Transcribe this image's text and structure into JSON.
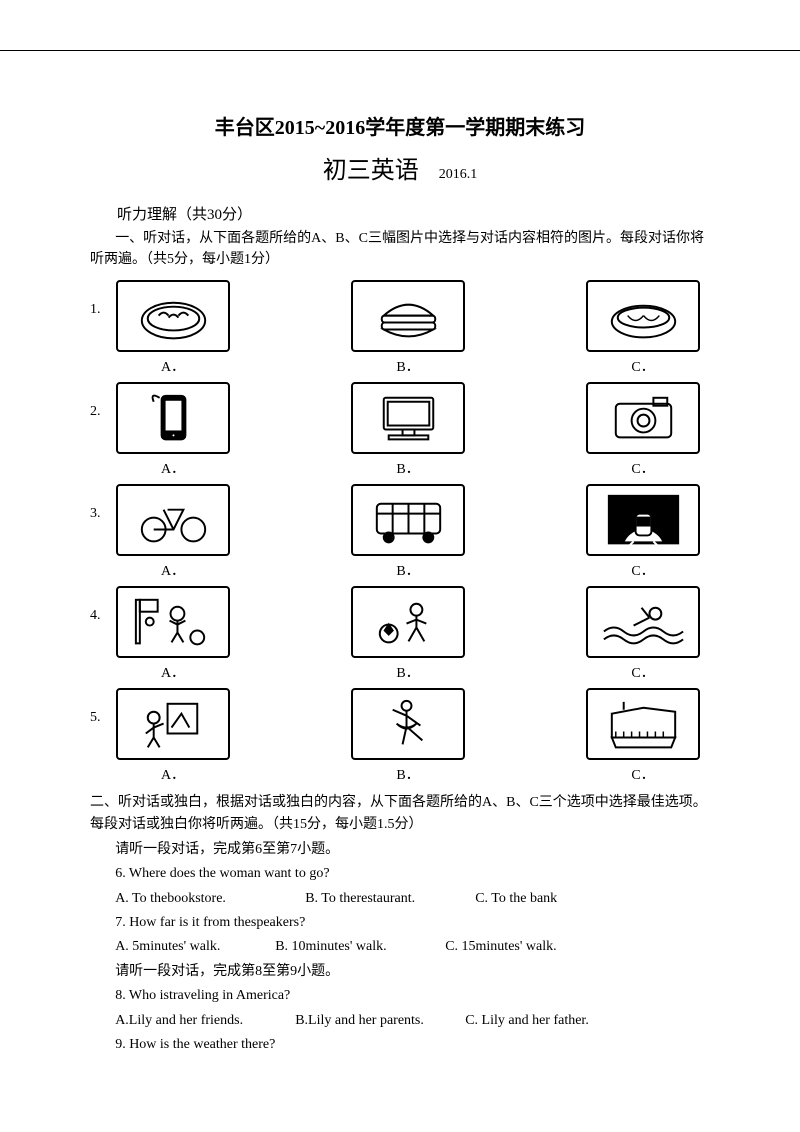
{
  "header": {
    "main": "丰台区2015~2016学年度第一学期期末练习",
    "sub": "初三英语",
    "date": "2016.1"
  },
  "listening": {
    "head": "听力理解（共30分）",
    "part1_intro": "一、听对话，从下面各题所给的A、B、C三幅图片中选择与对话内容相符的图片。每段对话你将听两遍。（共5分，每小题1分）",
    "labels": {
      "A": "A．",
      "B": "B．",
      "C": "C．"
    },
    "rows": [
      {
        "num": "1.",
        "icons": [
          "dumplings",
          "burger",
          "noodles"
        ]
      },
      {
        "num": "2.",
        "icons": [
          "phone",
          "computer",
          "camera"
        ]
      },
      {
        "num": "3.",
        "icons": [
          "bicycle",
          "bus",
          "subway"
        ]
      },
      {
        "num": "4.",
        "icons": [
          "basketball",
          "football",
          "swimming"
        ]
      },
      {
        "num": "5.",
        "icons": [
          "painting",
          "ballet",
          "piano"
        ]
      }
    ]
  },
  "part2": {
    "intro": "二、听对话或独白，根据对话或独白的内容，从下面各题所给的A、B、C三个选项中选择最佳选项。每段对话或独白你将听两遍。（共15分，每小题1.5分）",
    "d1": "请听一段对话，完成第6至第7小题。",
    "q6": "6. Where does the woman want to go?",
    "q6a": "A. To thebookstore.",
    "q6b": "B. To therestaurant.",
    "q6c": "C. To the bank",
    "q7": "7. How far is it from thespeakers?",
    "q7a": "A. 5minutes' walk.",
    "q7b": "B. 10minutes' walk.",
    "q7c": "C. 15minutes' walk.",
    "d2": "请听一段对话，完成第8至第9小题。",
    "q8": "8. Who istraveling in America?",
    "q8a": "A.Lily and her friends.",
    "q8b": "B.Lily and her parents.",
    "q8c": "C. Lily and her father.",
    "q9": "9. How is the weather there?"
  }
}
